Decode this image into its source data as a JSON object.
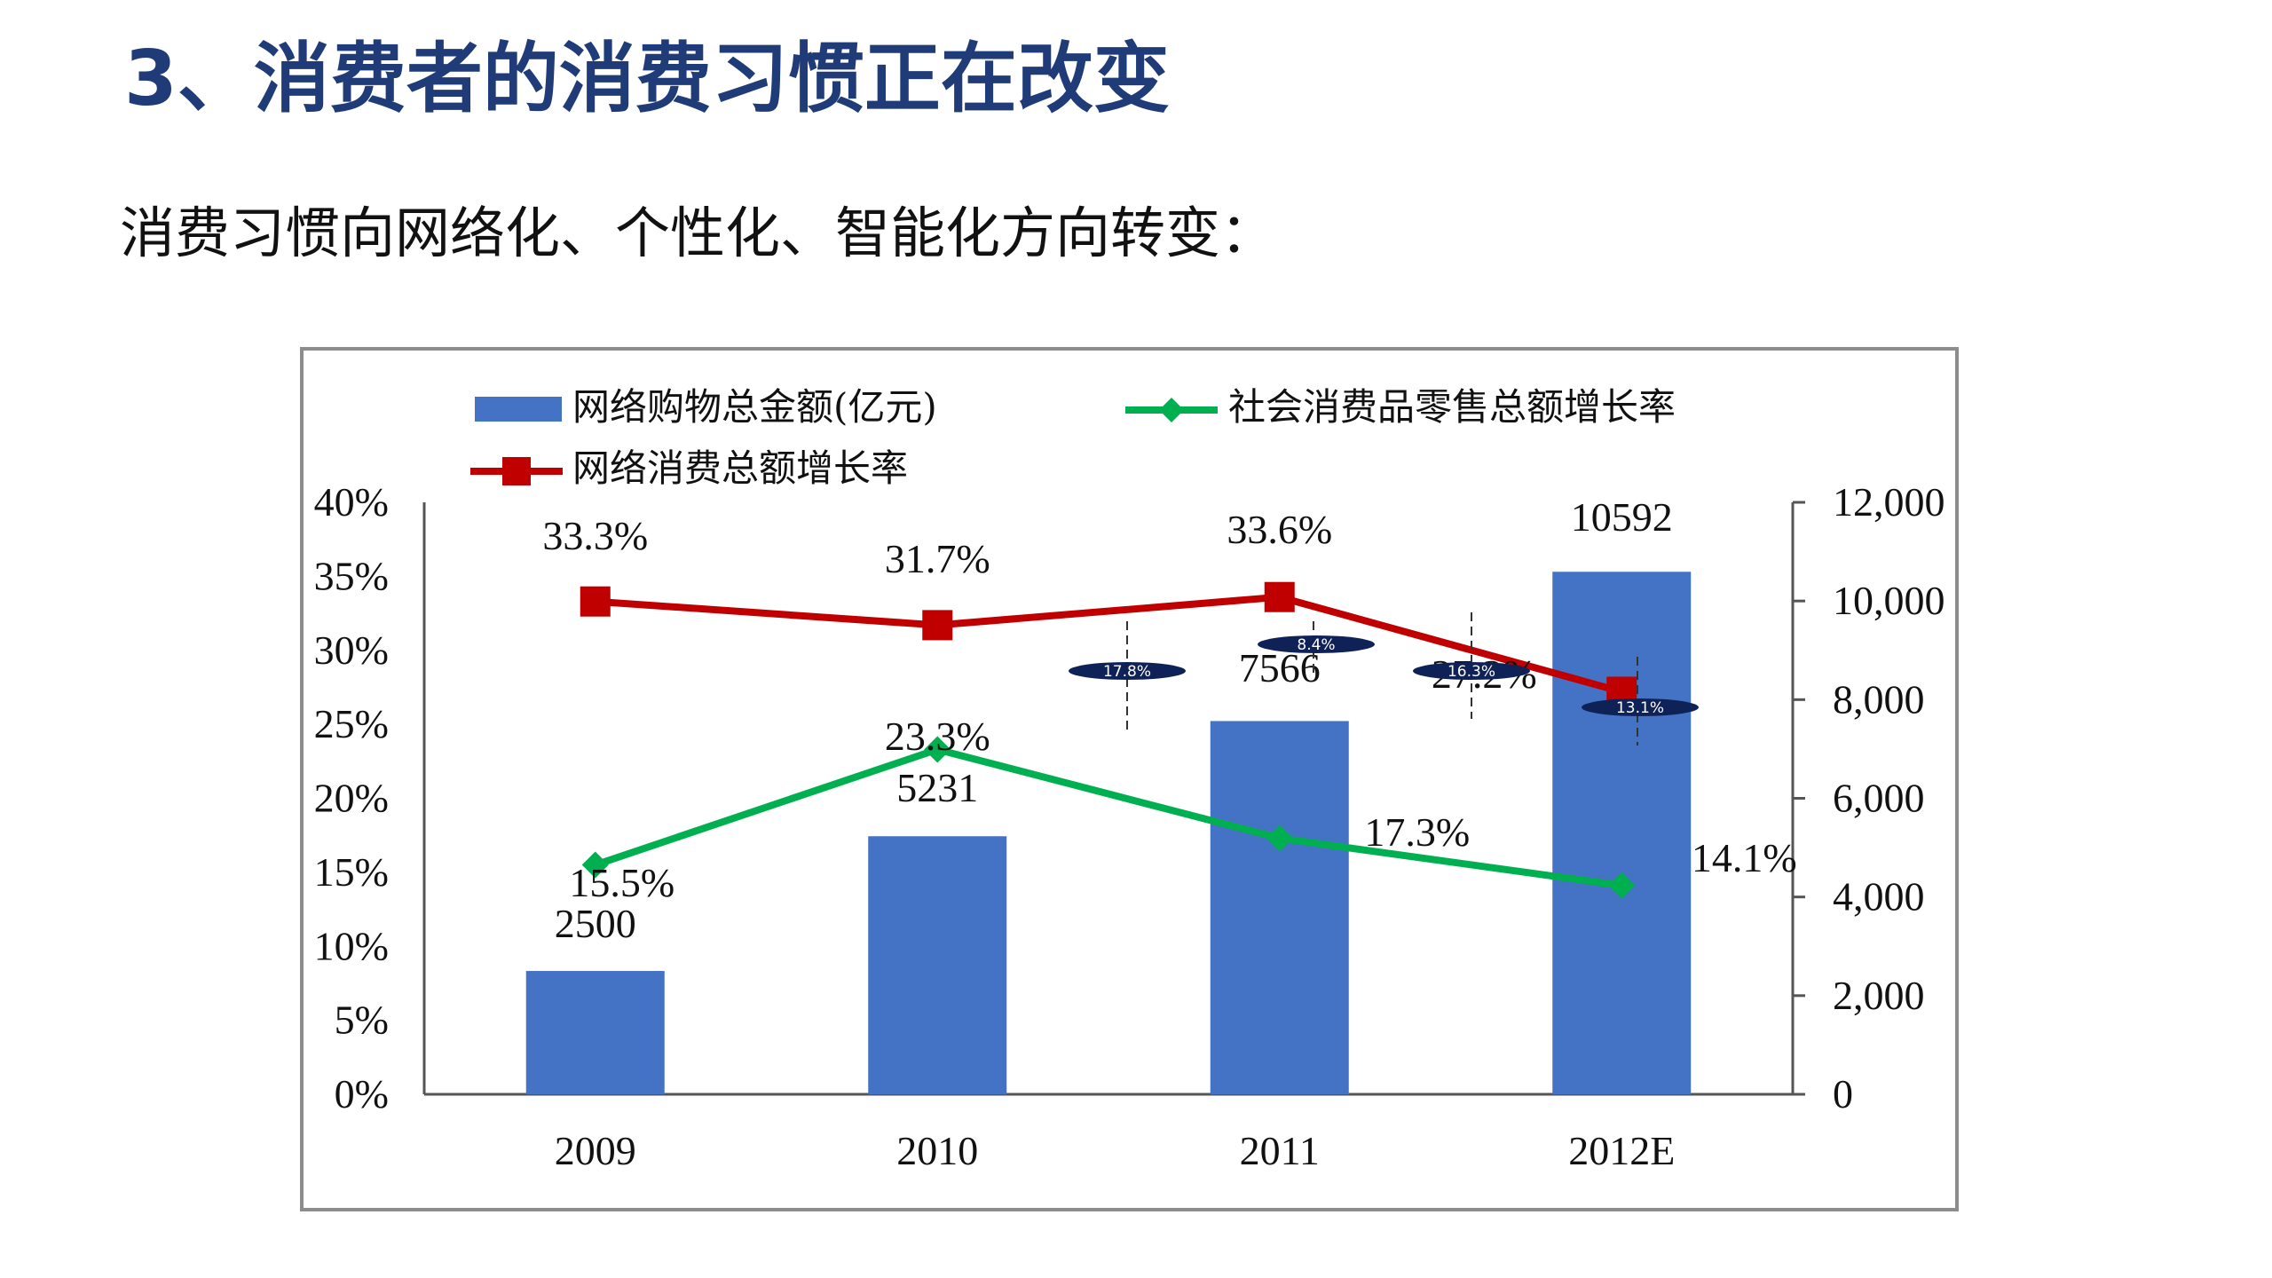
{
  "slide": {
    "title": "3、消费者的消费习惯正在改变",
    "subtitle": "消费习惯向网络化、个性化、智能化方向转变："
  },
  "colors": {
    "title": "#1f3b78",
    "bars": "#4472c4",
    "online_growth": "#c00000",
    "retail_growth": "#00b050",
    "callout": "#0f2258"
  },
  "chart_data": {
    "type": "bar",
    "categories": [
      "2009",
      "2010",
      "2011",
      "2012E"
    ],
    "series": [
      {
        "name": "网络购物总金额(亿元)",
        "type": "bar",
        "axis": "right",
        "values": [
          2500,
          5231,
          7566,
          10592
        ],
        "labels": [
          "2500",
          "5231",
          "7566",
          "10592"
        ]
      },
      {
        "name": "社会消费品零售总额增长率",
        "type": "line",
        "axis": "left",
        "values": [
          15.5,
          23.3,
          17.3,
          14.1
        ],
        "labels": [
          "15.5%",
          "23.3%",
          "17.3%",
          "14.1%"
        ]
      },
      {
        "name": "网络消费总额增长率",
        "type": "line",
        "axis": "left",
        "values": [
          33.3,
          31.7,
          33.6,
          27.2
        ],
        "labels": [
          "33.3%",
          "31.7%",
          "33.6%",
          "27.2%"
        ]
      }
    ],
    "y_left": {
      "ticks": [
        "0%",
        "5%",
        "10%",
        "15%",
        "20%",
        "25%",
        "30%",
        "35%",
        "40%"
      ],
      "range": [
        0,
        40
      ]
    },
    "y_right": {
      "ticks": [
        "0",
        "2,000",
        "4,000",
        "6,000",
        "8,000",
        "10,000",
        "12,000"
      ],
      "range": [
        0,
        12000
      ]
    },
    "callouts": [
      "17.8%",
      "8.4%",
      "16.3%",
      "13.1%"
    ],
    "legend_position": "top",
    "grid": false
  }
}
